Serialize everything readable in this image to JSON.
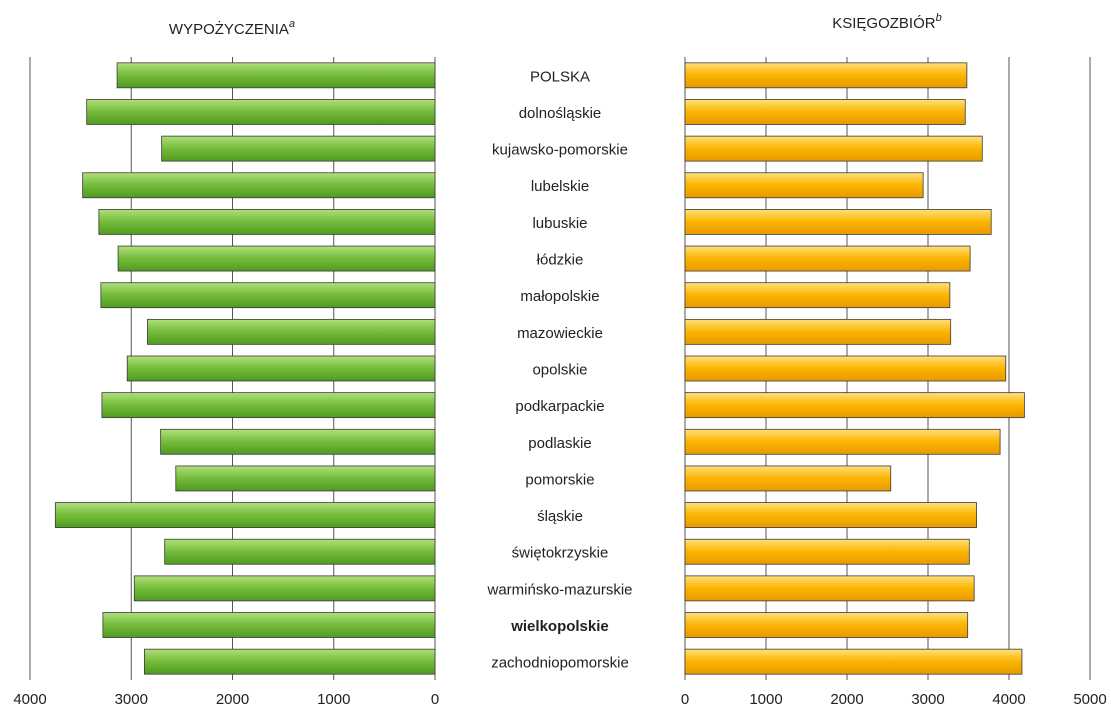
{
  "chart_data": [
    {
      "type": "bar",
      "orientation": "horizontal",
      "direction": "right-to-left",
      "title": "WYPOŻYCZENIA",
      "title_note": "a",
      "color": "#74bb3a",
      "categories": [
        "POLSKA",
        "dolnośląskie",
        "kujawsko-pomorskie",
        "lubelskie",
        "lubuskie",
        "łódzkie",
        "małopolskie",
        "mazowieckie",
        "opolskie",
        "podkarpackie",
        "podlaskie",
        "pomorskie",
        "śląskie",
        "świętokrzyskie",
        "warmińsko-mazurskie",
        "wielkopolskie",
        "zachodniopomorskie"
      ],
      "bold_category_index": 15,
      "values": [
        3140,
        3440,
        2700,
        3480,
        3320,
        3130,
        3300,
        2840,
        3040,
        3290,
        2710,
        2560,
        3750,
        2670,
        2970,
        3280,
        2870
      ],
      "xlim": [
        0,
        4000
      ],
      "xticks": [
        0,
        1000,
        2000,
        3000,
        4000
      ],
      "grid": true
    },
    {
      "type": "bar",
      "orientation": "horizontal",
      "direction": "left-to-right",
      "title": "KSIĘGOZBIÓR",
      "title_note": "b",
      "color": "#fbb400",
      "values": [
        3480,
        3460,
        3670,
        2940,
        3780,
        3520,
        3270,
        3280,
        3960,
        4190,
        3890,
        2540,
        3600,
        3510,
        3570,
        3490,
        4160
      ],
      "xlim": [
        0,
        5000
      ],
      "xticks": [
        0,
        1000,
        2000,
        3000,
        4000,
        5000
      ],
      "grid": true
    }
  ]
}
